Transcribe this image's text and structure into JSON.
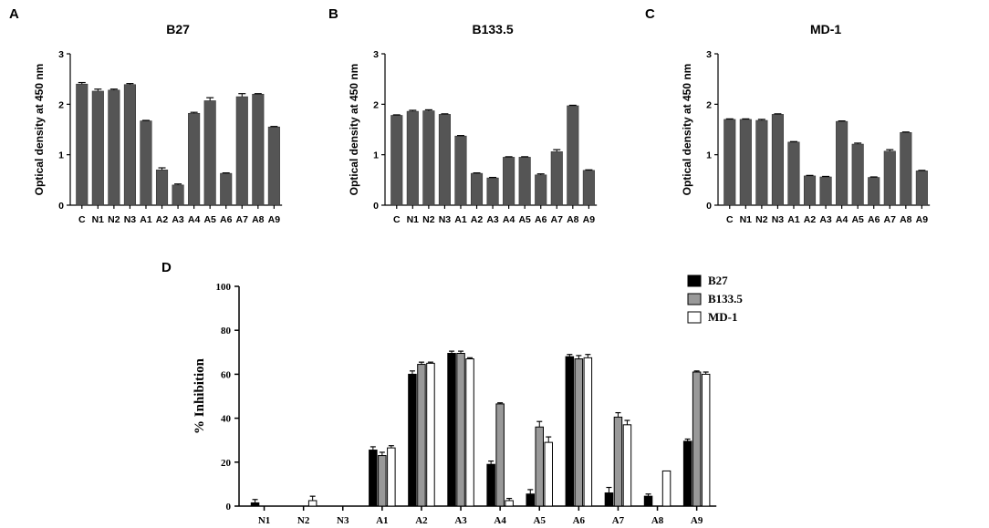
{
  "chart_data": [
    {
      "type": "bar",
      "panel": "A",
      "title": "B27",
      "ylabel": "Optical density at 450 nm",
      "xlabel": "",
      "ylim": [
        0,
        3
      ],
      "yticks": [
        "0",
        "1",
        "2",
        "3"
      ],
      "categories": [
        "C",
        "N1",
        "N2",
        "N3",
        "A1",
        "A2",
        "A3",
        "A4",
        "A5",
        "A6",
        "A7",
        "A8",
        "A9"
      ],
      "values": [
        2.4,
        2.26,
        2.28,
        2.39,
        1.67,
        0.7,
        0.4,
        1.82,
        2.07,
        0.63,
        2.15,
        2.2,
        1.55
      ],
      "errors": [
        0.03,
        0.04,
        0.02,
        0.02,
        0.01,
        0.04,
        0.02,
        0.02,
        0.06,
        0.01,
        0.06,
        0.01,
        0.01
      ],
      "color": "#555555"
    },
    {
      "type": "bar",
      "panel": "B",
      "title": "B133.5",
      "ylabel": "Optical density at 450 nm",
      "xlabel": "",
      "ylim": [
        0,
        3
      ],
      "yticks": [
        "0",
        "1",
        "2",
        "3"
      ],
      "categories": [
        "C",
        "N1",
        "N2",
        "N3",
        "A1",
        "A2",
        "A3",
        "A4",
        "A5",
        "A6",
        "A7",
        "A8",
        "A9"
      ],
      "values": [
        1.78,
        1.86,
        1.87,
        1.8,
        1.37,
        0.63,
        0.54,
        0.95,
        0.95,
        0.6,
        1.06,
        1.97,
        0.69
      ],
      "errors": [
        0.01,
        0.02,
        0.02,
        0.01,
        0.01,
        0.01,
        0.01,
        0.01,
        0.01,
        0.02,
        0.04,
        0.01,
        0.01
      ],
      "color": "#555555"
    },
    {
      "type": "bar",
      "panel": "C",
      "title": "MD-1",
      "ylabel": "Optical density at 450 nm",
      "xlabel": "",
      "ylim": [
        0,
        3
      ],
      "yticks": [
        "0",
        "1",
        "2",
        "3"
      ],
      "categories": [
        "C",
        "N1",
        "N2",
        "N3",
        "A1",
        "A2",
        "A3",
        "A4",
        "A5",
        "A6",
        "A7",
        "A8",
        "A9"
      ],
      "values": [
        1.7,
        1.7,
        1.68,
        1.8,
        1.25,
        0.58,
        0.56,
        1.66,
        1.21,
        0.55,
        1.07,
        1.44,
        0.68
      ],
      "errors": [
        0.01,
        0.01,
        0.02,
        0.01,
        0.01,
        0.01,
        0.01,
        0.01,
        0.02,
        0.01,
        0.03,
        0.01,
        0.01
      ],
      "color": "#555555"
    },
    {
      "type": "bar",
      "panel": "D",
      "title": "",
      "ylabel": "% Inhibition",
      "xlabel": "",
      "ylim": [
        0,
        100
      ],
      "yticks": [
        "0",
        "20",
        "40",
        "60",
        "80",
        "100"
      ],
      "categories": [
        "N1",
        "N2",
        "N3",
        "A1",
        "A2",
        "A3",
        "A4",
        "A5",
        "A6",
        "A7",
        "A8",
        "A9"
      ],
      "legend_position": "top-right",
      "series": [
        {
          "name": "B27",
          "color": "#000000",
          "values": [
            1.5,
            0,
            0,
            25.5,
            60,
            69.5,
            19,
            5.5,
            68,
            6,
            4.5,
            29.5
          ],
          "errors": [
            1.5,
            0,
            0,
            1.5,
            1.5,
            1,
            1.5,
            2,
            1,
            2.5,
            1,
            1
          ]
        },
        {
          "name": "B133.5",
          "color": "#999999",
          "values": [
            0,
            0,
            0,
            23,
            64.5,
            69.5,
            46.5,
            36,
            67,
            40.5,
            0,
            61
          ],
          "errors": [
            0,
            0,
            0,
            1.5,
            1,
            1,
            0.5,
            2.5,
            1.5,
            2,
            0,
            0.5
          ]
        },
        {
          "name": "MD-1",
          "color": "#ffffff",
          "values": [
            0,
            2.5,
            0,
            26.5,
            65,
            67,
            2.5,
            29,
            67.5,
            37,
            16,
            60
          ],
          "errors": [
            0,
            2,
            0,
            1,
            0.5,
            0.5,
            1,
            2.5,
            1.5,
            2,
            0,
            1
          ]
        }
      ]
    }
  ]
}
